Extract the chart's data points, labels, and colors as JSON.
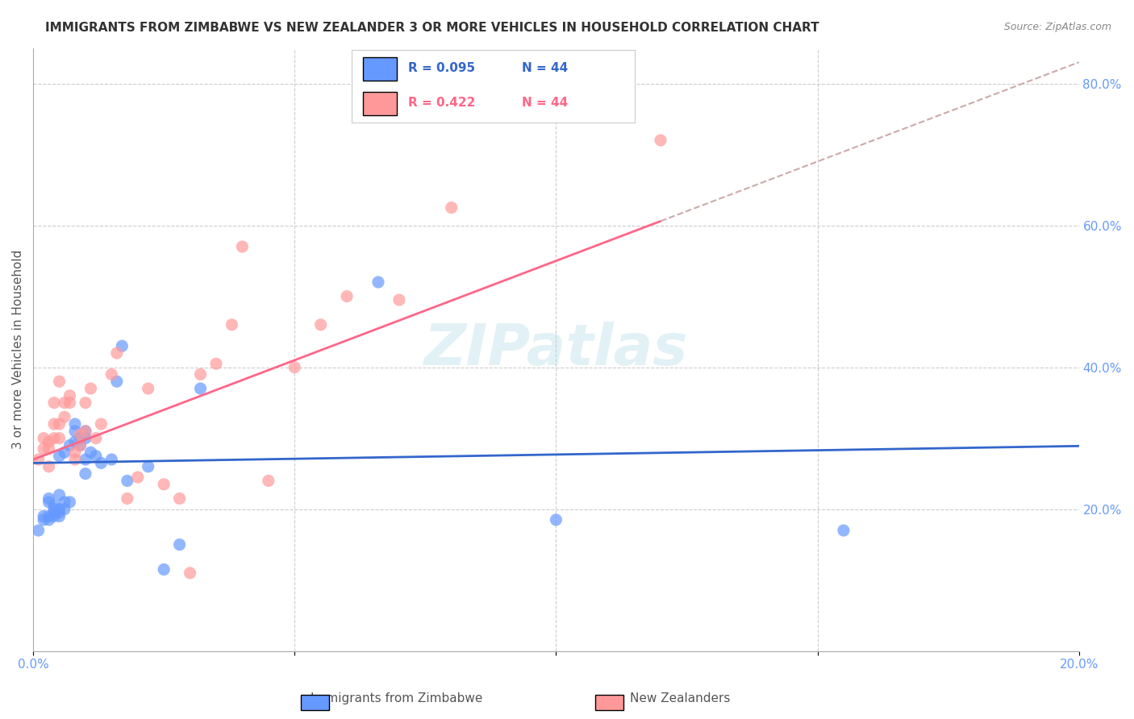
{
  "title": "IMMIGRANTS FROM ZIMBABWE VS NEW ZEALANDER 3 OR MORE VEHICLES IN HOUSEHOLD CORRELATION CHART",
  "source": "Source: ZipAtlas.com",
  "xlabel_bottom": "",
  "ylabel": "3 or more Vehicles in Household",
  "x_label_bottom_left": "0.0%",
  "x_label_bottom_right": "20.0%",
  "right_axis_labels": [
    "80.0%",
    "60.0%",
    "40.0%",
    "20.0%"
  ],
  "legend_blue_r": "R = 0.095",
  "legend_blue_n": "N = 44",
  "legend_pink_r": "R = 0.422",
  "legend_pink_n": "N = 44",
  "legend_blue_label": "Immigrants from Zimbabwe",
  "legend_pink_label": "New Zealanders",
  "blue_color": "#6699ff",
  "pink_color": "#ff9999",
  "blue_line_color": "#3366cc",
  "pink_line_color": "#ff6688",
  "dashed_line_color": "#ccaaaa",
  "watermark": "ZIPatlas",
  "blue_scatter_x": [
    0.001,
    0.002,
    0.002,
    0.003,
    0.003,
    0.003,
    0.003,
    0.004,
    0.004,
    0.004,
    0.004,
    0.005,
    0.005,
    0.005,
    0.005,
    0.005,
    0.006,
    0.006,
    0.006,
    0.007,
    0.007,
    0.008,
    0.008,
    0.008,
    0.009,
    0.009,
    0.01,
    0.01,
    0.01,
    0.01,
    0.011,
    0.012,
    0.013,
    0.015,
    0.016,
    0.017,
    0.018,
    0.022,
    0.025,
    0.028,
    0.032,
    0.066,
    0.1,
    0.155
  ],
  "blue_scatter_y": [
    0.17,
    0.185,
    0.19,
    0.185,
    0.19,
    0.21,
    0.215,
    0.19,
    0.195,
    0.2,
    0.205,
    0.19,
    0.195,
    0.2,
    0.22,
    0.275,
    0.2,
    0.21,
    0.28,
    0.21,
    0.29,
    0.295,
    0.31,
    0.32,
    0.29,
    0.3,
    0.25,
    0.27,
    0.3,
    0.31,
    0.28,
    0.275,
    0.265,
    0.27,
    0.38,
    0.43,
    0.24,
    0.26,
    0.115,
    0.15,
    0.37,
    0.52,
    0.185,
    0.17
  ],
  "pink_scatter_x": [
    0.001,
    0.002,
    0.002,
    0.003,
    0.003,
    0.003,
    0.004,
    0.004,
    0.004,
    0.005,
    0.005,
    0.005,
    0.006,
    0.006,
    0.007,
    0.007,
    0.008,
    0.008,
    0.009,
    0.009,
    0.01,
    0.01,
    0.011,
    0.012,
    0.013,
    0.015,
    0.016,
    0.018,
    0.02,
    0.022,
    0.025,
    0.028,
    0.03,
    0.032,
    0.035,
    0.038,
    0.04,
    0.045,
    0.05,
    0.055,
    0.06,
    0.07,
    0.08,
    0.12
  ],
  "pink_scatter_y": [
    0.27,
    0.285,
    0.3,
    0.26,
    0.285,
    0.295,
    0.3,
    0.32,
    0.35,
    0.3,
    0.32,
    0.38,
    0.33,
    0.35,
    0.35,
    0.36,
    0.27,
    0.28,
    0.29,
    0.305,
    0.31,
    0.35,
    0.37,
    0.3,
    0.32,
    0.39,
    0.42,
    0.215,
    0.245,
    0.37,
    0.235,
    0.215,
    0.11,
    0.39,
    0.405,
    0.46,
    0.57,
    0.24,
    0.4,
    0.46,
    0.5,
    0.495,
    0.625,
    0.72
  ],
  "xlim": [
    0.0,
    0.2
  ],
  "ylim": [
    0.0,
    0.85
  ],
  "blue_trend_slope": 0.12,
  "blue_trend_intercept": 0.265,
  "pink_trend_slope": 2.8,
  "pink_trend_intercept": 0.27,
  "dashed_trend_slope": 2.8,
  "dashed_trend_intercept": 0.27
}
